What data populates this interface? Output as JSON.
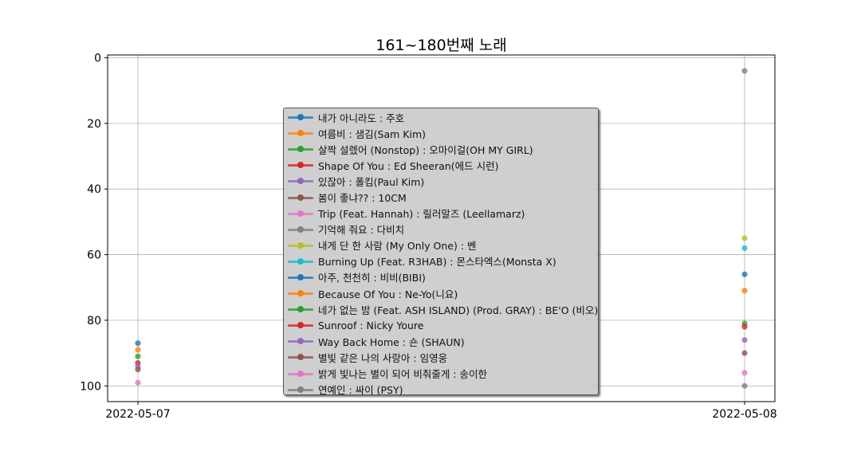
{
  "chart_data": {
    "type": "scatter",
    "title": "161~180번째 노래",
    "xlabel": "",
    "ylabel": "",
    "x": [
      "2022-05-07",
      "2022-05-08"
    ],
    "ylim": [
      104,
      0
    ],
    "y_inverted": true,
    "yticks": [
      0,
      20,
      40,
      60,
      80,
      100
    ],
    "grid": true,
    "legend_position": "center",
    "series": [
      {
        "name": "내가 아니라도 : 주호",
        "color": "#1f77b4",
        "values": [
          87,
          66
        ]
      },
      {
        "name": "여름비 : 샘김(Sam Kim)",
        "color": "#ff7f0e",
        "values": [
          89,
          71
        ]
      },
      {
        "name": "살짝 설렜어 (Nonstop) : 오마이걸(OH MY GIRL)",
        "color": "#2ca02c",
        "values": [
          91,
          81
        ]
      },
      {
        "name": "Shape Of You : Ed Sheeran(에드 시런)",
        "color": "#d62728",
        "values": [
          93,
          82
        ]
      },
      {
        "name": "있잖아 : 폴킴(Paul Kim)",
        "color": "#9467bd",
        "values": [
          94,
          86
        ]
      },
      {
        "name": "봄이 좋냐?? : 10CM",
        "color": "#8c564b",
        "values": [
          95,
          90
        ]
      },
      {
        "name": "Trip (Feat. Hannah) : 릴러말즈 (Leellamarz)",
        "color": "#e377c2",
        "values": [
          99,
          96
        ]
      },
      {
        "name": "기억해 줘요 : 다비치",
        "color": "#7f7f7f",
        "values": [
          null,
          4
        ]
      },
      {
        "name": "내게 단 한 사람 (My Only One) : 벤",
        "color": "#bcbd22",
        "values": [
          null,
          55
        ]
      },
      {
        "name": "Burning Up (Feat. R3HAB) : 몬스타엑스(Monsta X)",
        "color": "#17becf",
        "values": [
          null,
          58
        ]
      },
      {
        "name": "아주, 천천히 : 비비(BIBI)",
        "color": "#1f77b4",
        "values": [
          null,
          null
        ]
      },
      {
        "name": "Because Of You : Ne-Yo(니요)",
        "color": "#ff7f0e",
        "values": [
          null,
          null
        ]
      },
      {
        "name": "네가 없는 밤 (Feat. ASH ISLAND) (Prod. GRAY) : BE'O (비오)",
        "color": "#2ca02c",
        "values": [
          null,
          null
        ]
      },
      {
        "name": "Sunroof : Nicky Youre",
        "color": "#d62728",
        "values": [
          null,
          null
        ]
      },
      {
        "name": "Way Back Home : 숀 (SHAUN)",
        "color": "#9467bd",
        "values": [
          null,
          null
        ]
      },
      {
        "name": "별빛 같은 나의 사랑아 : 임영웅",
        "color": "#8c564b",
        "values": [
          null,
          null
        ]
      },
      {
        "name": "밝게 빛나는 별이 되어 비춰줄게 : 송이한",
        "color": "#e377c2",
        "values": [
          null,
          null
        ]
      },
      {
        "name": "연예인 : 싸이 (PSY)",
        "color": "#7f7f7f",
        "values": [
          null,
          100
        ]
      }
    ]
  }
}
